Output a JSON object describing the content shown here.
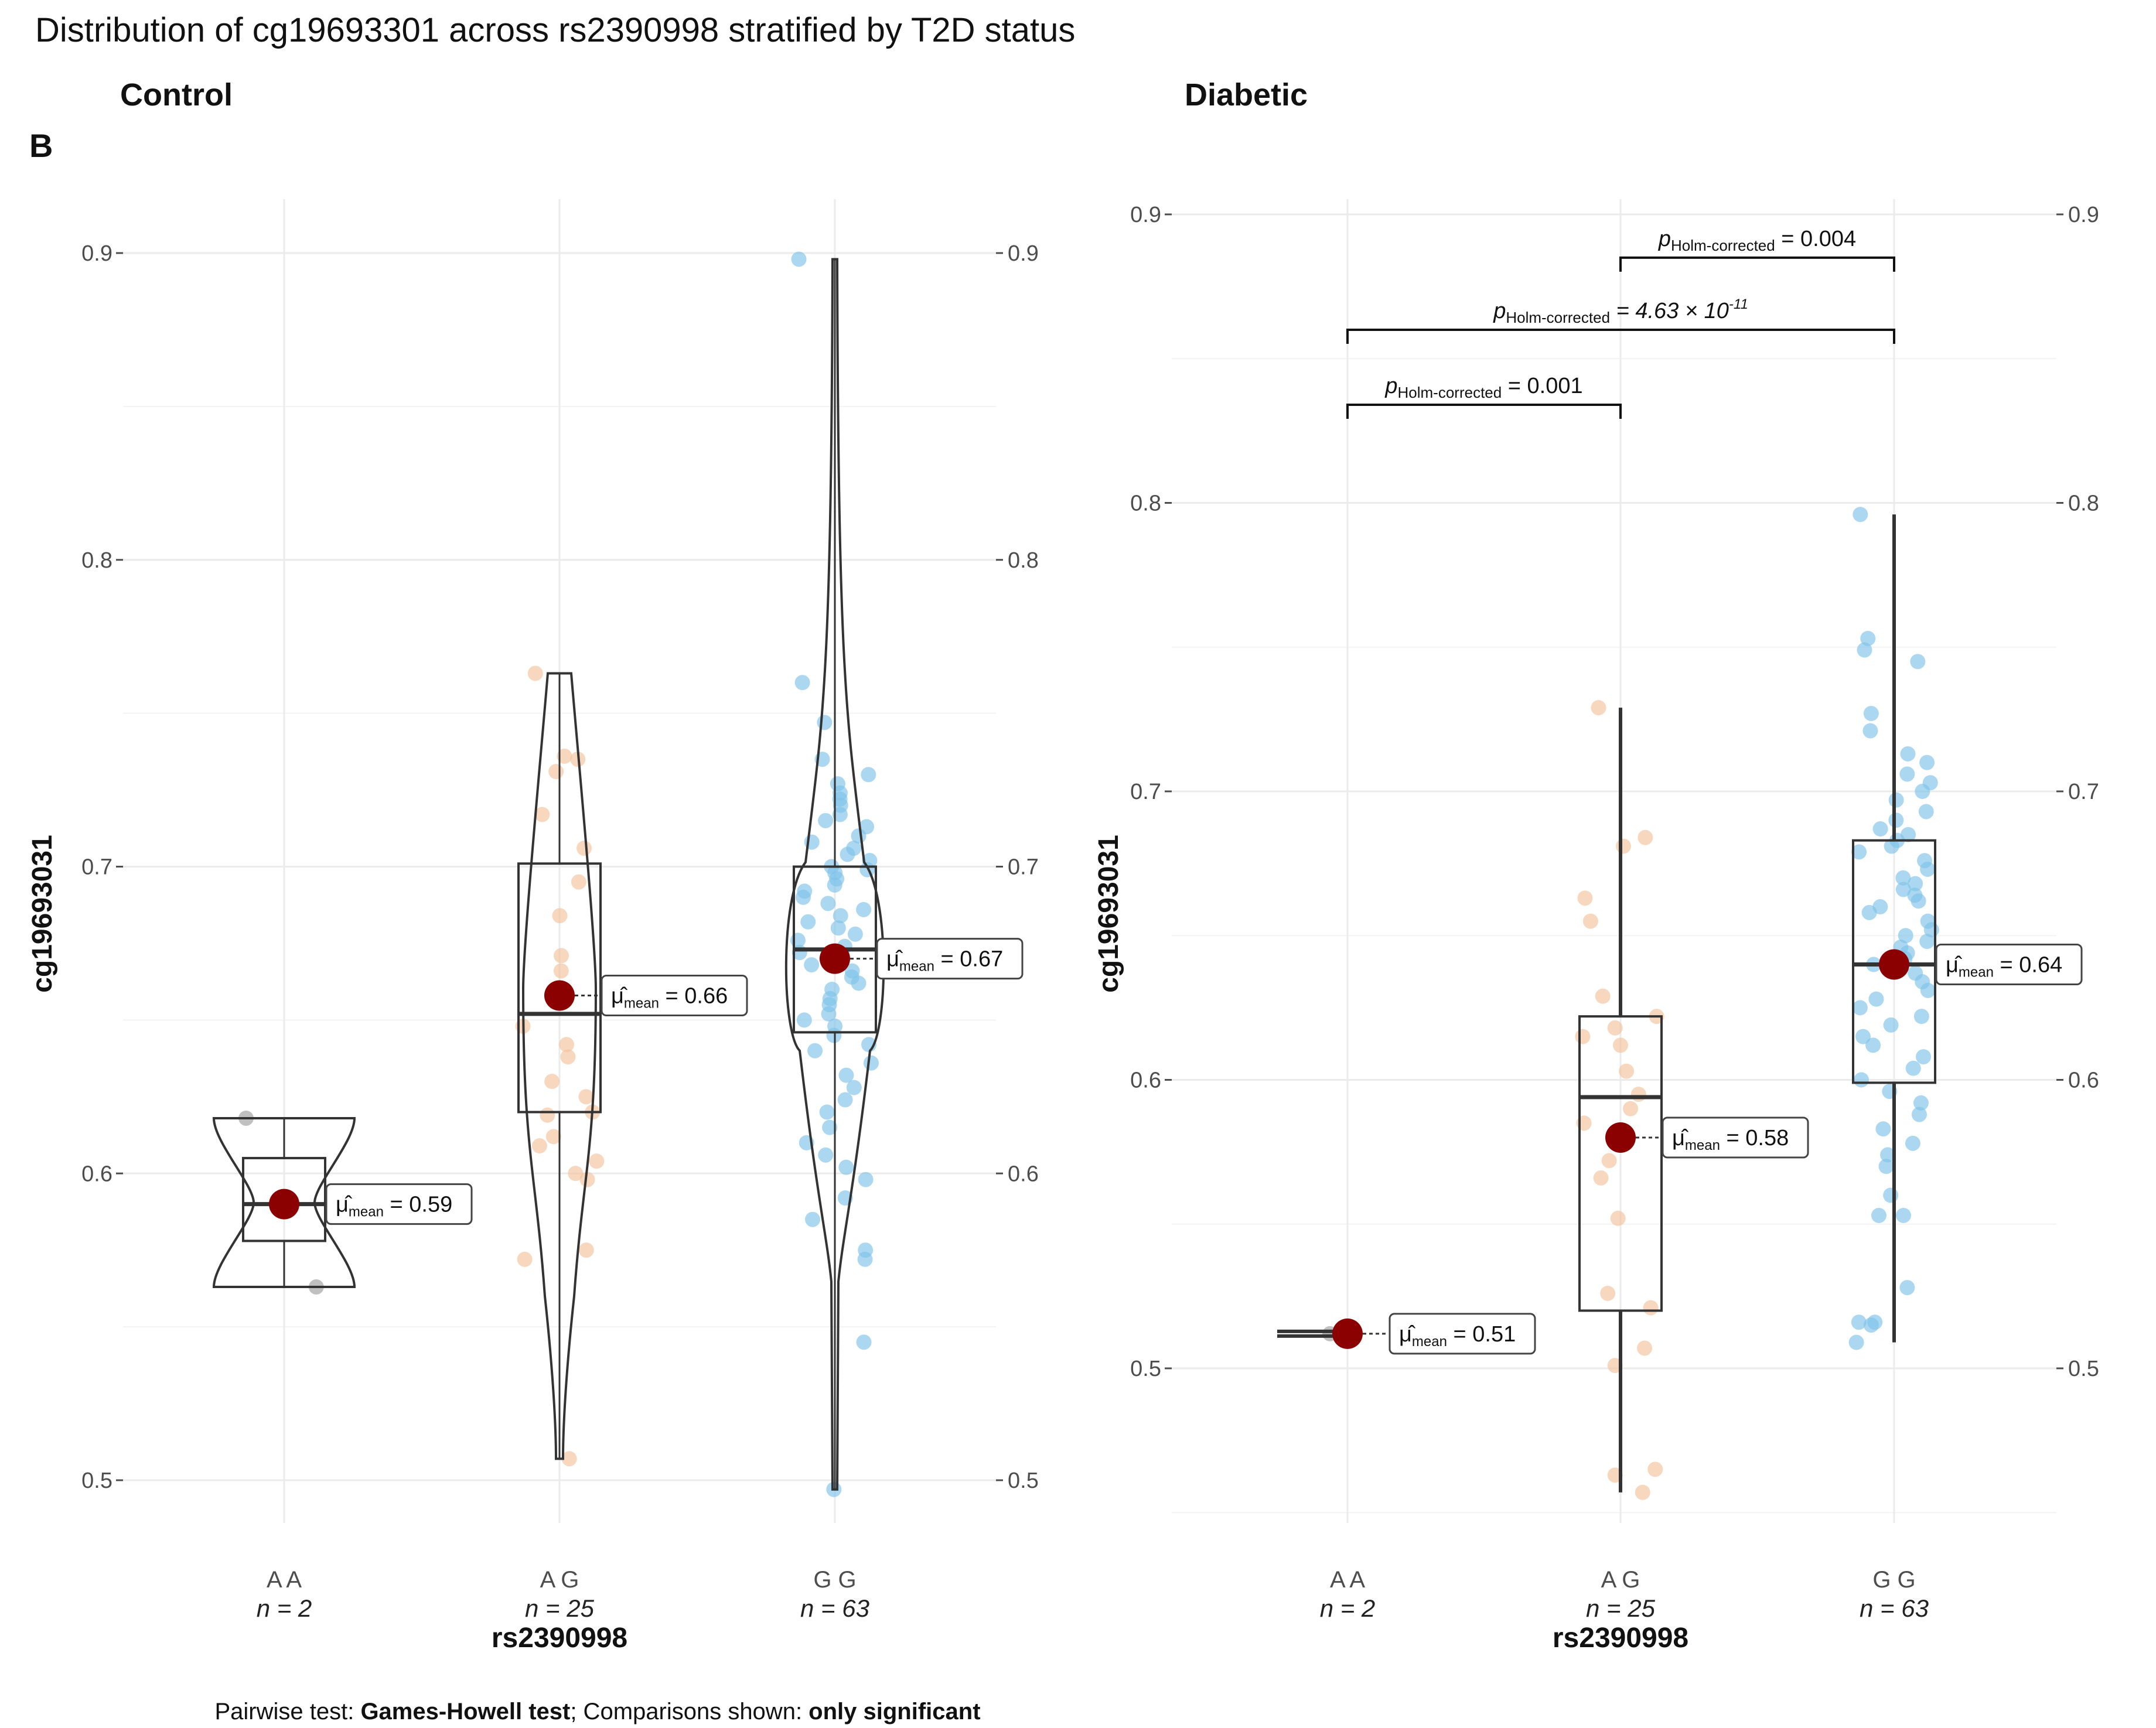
{
  "title": "Distribution of cg19693301 across rs2390998 stratified by T2D status",
  "panel_tag": "B",
  "caption": {
    "prefix": "Pairwise test: ",
    "test": "Games-Howell test",
    "middle": "; Comparisons shown: ",
    "shown": "only significant"
  },
  "colors": {
    "AA": "#9e9e9e",
    "AG": "#f2c39c",
    "GG": "#7ec3e8",
    "mean": "#8b0000",
    "outline": "#333333"
  },
  "chart_data": [
    {
      "type": "violin-box-scatter",
      "panel": "Control",
      "xlabel": "rs2390998",
      "ylabel": "cg19693031",
      "ylim": [
        0.49,
        0.92
      ],
      "yticks": [
        "0.5",
        "0.6",
        "0.7",
        "0.8",
        "0.9"
      ],
      "categories": [
        {
          "label": "A A",
          "n_label": "n = 2",
          "color": "#9e9e9e",
          "mean": 0.59,
          "mean_label": "0.59",
          "box": {
            "q1": 0.578,
            "median": 0.59,
            "q3": 0.605,
            "wlow": 0.563,
            "whigh": 0.618
          },
          "violin": {
            "shape": "hourglass",
            "lo": 0.563,
            "hi": 0.618
          },
          "points": [
            0.618,
            0.563
          ]
        },
        {
          "label": "A G",
          "n_label": "n = 25",
          "color": "#f2c39c",
          "mean": 0.658,
          "mean_label": "0.66",
          "box": {
            "q1": 0.62,
            "median": 0.652,
            "q3": 0.701,
            "wlow": 0.507,
            "whigh": 0.763
          },
          "violin": {
            "shape": "spindle",
            "lo": 0.507,
            "hi": 0.763
          },
          "points": [
            0.763,
            0.735,
            0.736,
            0.731,
            0.717,
            0.706,
            0.695,
            0.684,
            0.671,
            0.666,
            0.648,
            0.642,
            0.638,
            0.63,
            0.625,
            0.619,
            0.612,
            0.609,
            0.604,
            0.6,
            0.598,
            0.575,
            0.572,
            0.507,
            0.62
          ]
        },
        {
          "label": "G G",
          "n_label": "n = 63",
          "color": "#7ec3e8",
          "mean": 0.67,
          "mean_label": "0.67",
          "box": {
            "q1": 0.646,
            "median": 0.673,
            "q3": 0.7,
            "wlow": 0.497,
            "whigh": 0.898
          },
          "violin": {
            "shape": "teardrop",
            "lo": 0.497,
            "hi": 0.898
          },
          "points": [
            0.898,
            0.76,
            0.747,
            0.735,
            0.73,
            0.727,
            0.724,
            0.722,
            0.72,
            0.717,
            0.715,
            0.713,
            0.71,
            0.708,
            0.706,
            0.704,
            0.702,
            0.7,
            0.699,
            0.698,
            0.696,
            0.694,
            0.692,
            0.69,
            0.688,
            0.686,
            0.684,
            0.682,
            0.68,
            0.678,
            0.676,
            0.674,
            0.672,
            0.67,
            0.668,
            0.666,
            0.664,
            0.662,
            0.66,
            0.657,
            0.655,
            0.652,
            0.65,
            0.648,
            0.645,
            0.642,
            0.64,
            0.636,
            0.632,
            0.628,
            0.624,
            0.62,
            0.615,
            0.61,
            0.606,
            0.602,
            0.598,
            0.592,
            0.585,
            0.575,
            0.572,
            0.545,
            0.497
          ]
        }
      ],
      "comparisons": []
    },
    {
      "type": "box-scatter",
      "panel": "Diabetic",
      "xlabel": "rs2390998",
      "ylabel": "cg19693031",
      "ylim": [
        0.45,
        0.92
      ],
      "yticks": [
        "0.5",
        "0.6",
        "0.7",
        "0.8",
        "0.9"
      ],
      "categories": [
        {
          "label": "A A",
          "n_label": "n = 2",
          "color": "#9e9e9e",
          "mean": 0.512,
          "mean_label": "0.51",
          "box": {
            "q1": 0.511,
            "median": 0.512,
            "q3": 0.513,
            "wlow": 0.511,
            "whigh": 0.513
          },
          "points": [
            0.512,
            0.512
          ]
        },
        {
          "label": "A G",
          "n_label": "n = 25",
          "color": "#f2c39c",
          "mean": 0.58,
          "mean_label": "0.58",
          "box": {
            "q1": 0.52,
            "median": 0.594,
            "q3": 0.622,
            "wlow": 0.457,
            "whigh": 0.729
          },
          "points": [
            0.729,
            0.684,
            0.681,
            0.663,
            0.655,
            0.629,
            0.622,
            0.618,
            0.615,
            0.612,
            0.603,
            0.595,
            0.59,
            0.585,
            0.58,
            0.572,
            0.566,
            0.552,
            0.526,
            0.521,
            0.507,
            0.501,
            0.465,
            0.463,
            0.457
          ]
        },
        {
          "label": "G G",
          "n_label": "n = 63",
          "color": "#7ec3e8",
          "mean": 0.64,
          "mean_label": "0.64",
          "box": {
            "q1": 0.599,
            "median": 0.64,
            "q3": 0.683,
            "wlow": 0.509,
            "whigh": 0.796
          },
          "points": [
            0.796,
            0.753,
            0.749,
            0.745,
            0.727,
            0.721,
            0.713,
            0.71,
            0.706,
            0.703,
            0.7,
            0.697,
            0.693,
            0.69,
            0.687,
            0.685,
            0.683,
            0.681,
            0.679,
            0.676,
            0.673,
            0.67,
            0.668,
            0.666,
            0.664,
            0.662,
            0.66,
            0.658,
            0.655,
            0.652,
            0.65,
            0.648,
            0.646,
            0.644,
            0.642,
            0.64,
            0.637,
            0.634,
            0.631,
            0.628,
            0.625,
            0.622,
            0.619,
            0.615,
            0.612,
            0.608,
            0.604,
            0.6,
            0.596,
            0.592,
            0.588,
            0.583,
            0.578,
            0.574,
            0.57,
            0.56,
            0.553,
            0.553,
            0.528,
            0.516,
            0.516,
            0.515,
            0.509
          ]
        }
      ],
      "comparisons": [
        {
          "from": 1,
          "to": 2,
          "y": 0.885,
          "label_main": "p",
          "label_sub": "Holm-corrected",
          "label_value": " = 0.004",
          "italic": false
        },
        {
          "from": 0,
          "to": 2,
          "y": 0.86,
          "label_main": "p",
          "label_sub": "Holm-corrected",
          "label_value": " = 4.63 × 10",
          "label_exp": "-11",
          "italic": true
        },
        {
          "from": 0,
          "to": 1,
          "y": 0.834,
          "label_main": "p",
          "label_sub": "Holm-corrected",
          "label_value": " = 0.001",
          "italic": false
        }
      ]
    }
  ]
}
